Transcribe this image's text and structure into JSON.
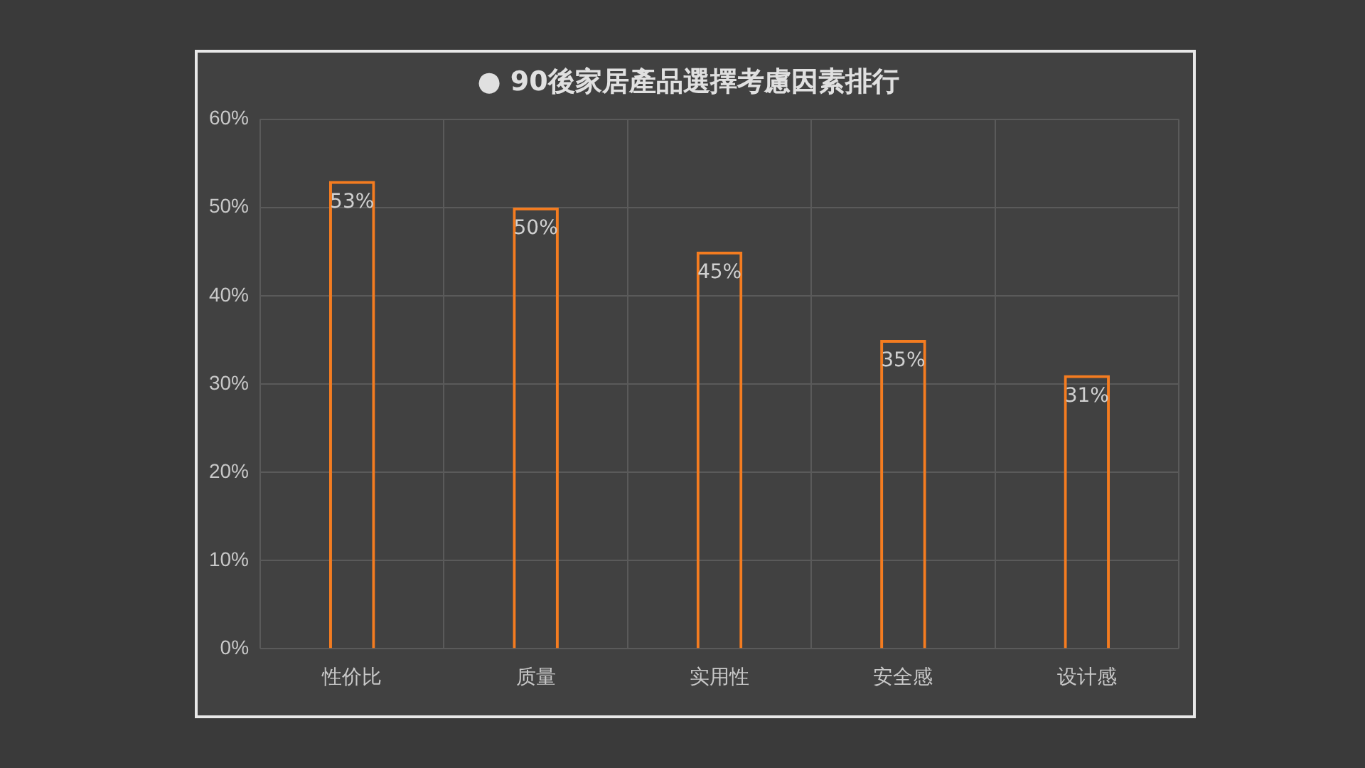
{
  "chart_data": {
    "type": "bar",
    "title": "● 90後家居產品選擇考慮因素排行",
    "categories": [
      "性价比",
      "质量",
      "实用性",
      "安全感",
      "设计感"
    ],
    "values": [
      53,
      50,
      45,
      35,
      31
    ],
    "value_labels": [
      "53%",
      "50%",
      "45%",
      "35%",
      "31%"
    ],
    "color": "#f47c20",
    "ylim": [
      0,
      60
    ],
    "yticks": [
      {
        "value": 0,
        "label": "0%"
      },
      {
        "value": 10,
        "label": "10%"
      },
      {
        "value": 20,
        "label": "20%"
      },
      {
        "value": 30,
        "label": "30%"
      },
      {
        "value": 40,
        "label": "40%"
      },
      {
        "value": 50,
        "label": "50%"
      },
      {
        "value": 60,
        "label": "60%"
      }
    ],
    "grid": true
  }
}
